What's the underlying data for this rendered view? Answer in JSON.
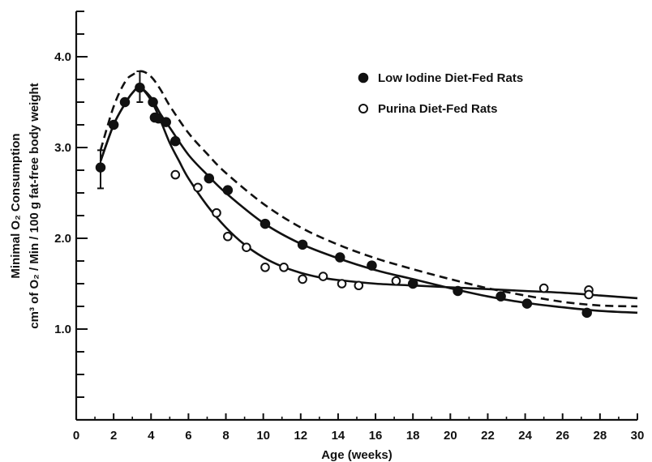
{
  "chart_data": {
    "type": "scatter",
    "xlabel": "Age (weeks)",
    "ylabel_line1": "Minimal O₂ Consumption",
    "ylabel_line2": "cm³ of O₂ / Min / 100 g fat-free body weight",
    "xlim": [
      0,
      30
    ],
    "ylim": [
      0,
      4.5
    ],
    "x_ticks": [
      0,
      2,
      4,
      6,
      8,
      10,
      12,
      14,
      16,
      18,
      20,
      22,
      24,
      26,
      28,
      30
    ],
    "x_tick_labels": [
      "0",
      "2",
      "4",
      "6",
      "8",
      "10",
      "12",
      "14",
      "16",
      "18",
      "20",
      "22",
      "24",
      "26",
      "28",
      "30"
    ],
    "y_ticks": [
      1.0,
      2.0,
      3.0,
      4.0
    ],
    "y_tick_labels": [
      "1.0",
      "2.0",
      "3.0",
      "4.0"
    ],
    "y_minor_step": 0.25,
    "grid": false,
    "legend_position": "top-right",
    "series": [
      {
        "name": "Low Iodine Diet-Fed Rats",
        "marker": "filled-circle",
        "points": [
          [
            1.3,
            2.78
          ],
          [
            2.0,
            3.25
          ],
          [
            2.6,
            3.5
          ],
          [
            3.4,
            3.66
          ],
          [
            4.1,
            3.5
          ],
          [
            4.2,
            3.33
          ],
          [
            4.4,
            3.32
          ],
          [
            4.8,
            3.28
          ],
          [
            5.3,
            3.07
          ],
          [
            7.1,
            2.66
          ],
          [
            8.1,
            2.53
          ],
          [
            10.1,
            2.16
          ],
          [
            12.1,
            1.93
          ],
          [
            14.1,
            1.79
          ],
          [
            15.8,
            1.7
          ],
          [
            18.0,
            1.5
          ],
          [
            20.4,
            1.42
          ],
          [
            22.7,
            1.36
          ],
          [
            24.1,
            1.28
          ],
          [
            27.3,
            1.18
          ]
        ]
      },
      {
        "name": "Purina Diet-Fed Rats",
        "marker": "open-circle",
        "points": [
          [
            5.3,
            2.7
          ],
          [
            6.5,
            2.56
          ],
          [
            7.5,
            2.28
          ],
          [
            8.1,
            2.02
          ],
          [
            9.1,
            1.9
          ],
          [
            10.1,
            1.68
          ],
          [
            11.1,
            1.68
          ],
          [
            12.1,
            1.55
          ],
          [
            13.2,
            1.58
          ],
          [
            14.2,
            1.5
          ],
          [
            15.1,
            1.48
          ],
          [
            17.1,
            1.53
          ],
          [
            25.0,
            1.45
          ],
          [
            27.4,
            1.43
          ],
          [
            27.4,
            1.38
          ]
        ]
      }
    ],
    "curves": [
      {
        "style": "dashed",
        "points": [
          [
            1.3,
            2.97
          ],
          [
            2.0,
            3.45
          ],
          [
            2.6,
            3.72
          ],
          [
            3.0,
            3.8
          ],
          [
            3.5,
            3.84
          ],
          [
            4.0,
            3.78
          ],
          [
            4.5,
            3.64
          ],
          [
            5.0,
            3.46
          ],
          [
            6.0,
            3.16
          ],
          [
            7.0,
            2.93
          ],
          [
            8.0,
            2.72
          ],
          [
            10.0,
            2.38
          ],
          [
            12.0,
            2.12
          ],
          [
            14.0,
            1.93
          ],
          [
            16.0,
            1.78
          ],
          [
            18.0,
            1.66
          ],
          [
            20.0,
            1.55
          ],
          [
            22.0,
            1.45
          ],
          [
            24.0,
            1.37
          ],
          [
            26.0,
            1.3
          ],
          [
            28.0,
            1.26
          ],
          [
            30.0,
            1.25
          ]
        ]
      },
      {
        "style": "solid",
        "points": [
          [
            1.3,
            2.85
          ],
          [
            2.0,
            3.25
          ],
          [
            2.6,
            3.48
          ],
          [
            3.0,
            3.6
          ],
          [
            3.4,
            3.66
          ],
          [
            4.0,
            3.55
          ],
          [
            4.5,
            3.37
          ],
          [
            5.0,
            3.22
          ],
          [
            6.0,
            2.92
          ],
          [
            7.0,
            2.7
          ],
          [
            8.0,
            2.5
          ],
          [
            10.0,
            2.17
          ],
          [
            12.0,
            1.94
          ],
          [
            14.0,
            1.78
          ],
          [
            16.0,
            1.65
          ],
          [
            18.0,
            1.55
          ],
          [
            20.0,
            1.45
          ],
          [
            22.0,
            1.36
          ],
          [
            24.0,
            1.29
          ],
          [
            26.0,
            1.24
          ],
          [
            28.0,
            1.2
          ],
          [
            30.0,
            1.18
          ]
        ]
      },
      {
        "style": "solid",
        "points": [
          [
            1.3,
            2.85
          ],
          [
            2.0,
            3.25
          ],
          [
            2.6,
            3.48
          ],
          [
            3.0,
            3.6
          ],
          [
            3.4,
            3.66
          ],
          [
            4.0,
            3.52
          ],
          [
            4.5,
            3.3
          ],
          [
            5.0,
            3.05
          ],
          [
            5.5,
            2.85
          ],
          [
            6.0,
            2.66
          ],
          [
            7.0,
            2.36
          ],
          [
            8.0,
            2.12
          ],
          [
            9.0,
            1.93
          ],
          [
            10.0,
            1.79
          ],
          [
            11.0,
            1.69
          ],
          [
            12.0,
            1.62
          ],
          [
            13.0,
            1.57
          ],
          [
            14.0,
            1.54
          ],
          [
            16.0,
            1.5
          ],
          [
            18.0,
            1.48
          ],
          [
            20.0,
            1.46
          ],
          [
            22.0,
            1.44
          ],
          [
            24.0,
            1.42
          ],
          [
            26.0,
            1.4
          ],
          [
            28.0,
            1.37
          ],
          [
            30.0,
            1.34
          ]
        ]
      }
    ],
    "error_bars": [
      {
        "x": 1.3,
        "y_low": 2.55,
        "y_high": 2.97
      },
      {
        "x": 3.4,
        "y_low": 3.5,
        "y_high": 3.84
      }
    ]
  }
}
